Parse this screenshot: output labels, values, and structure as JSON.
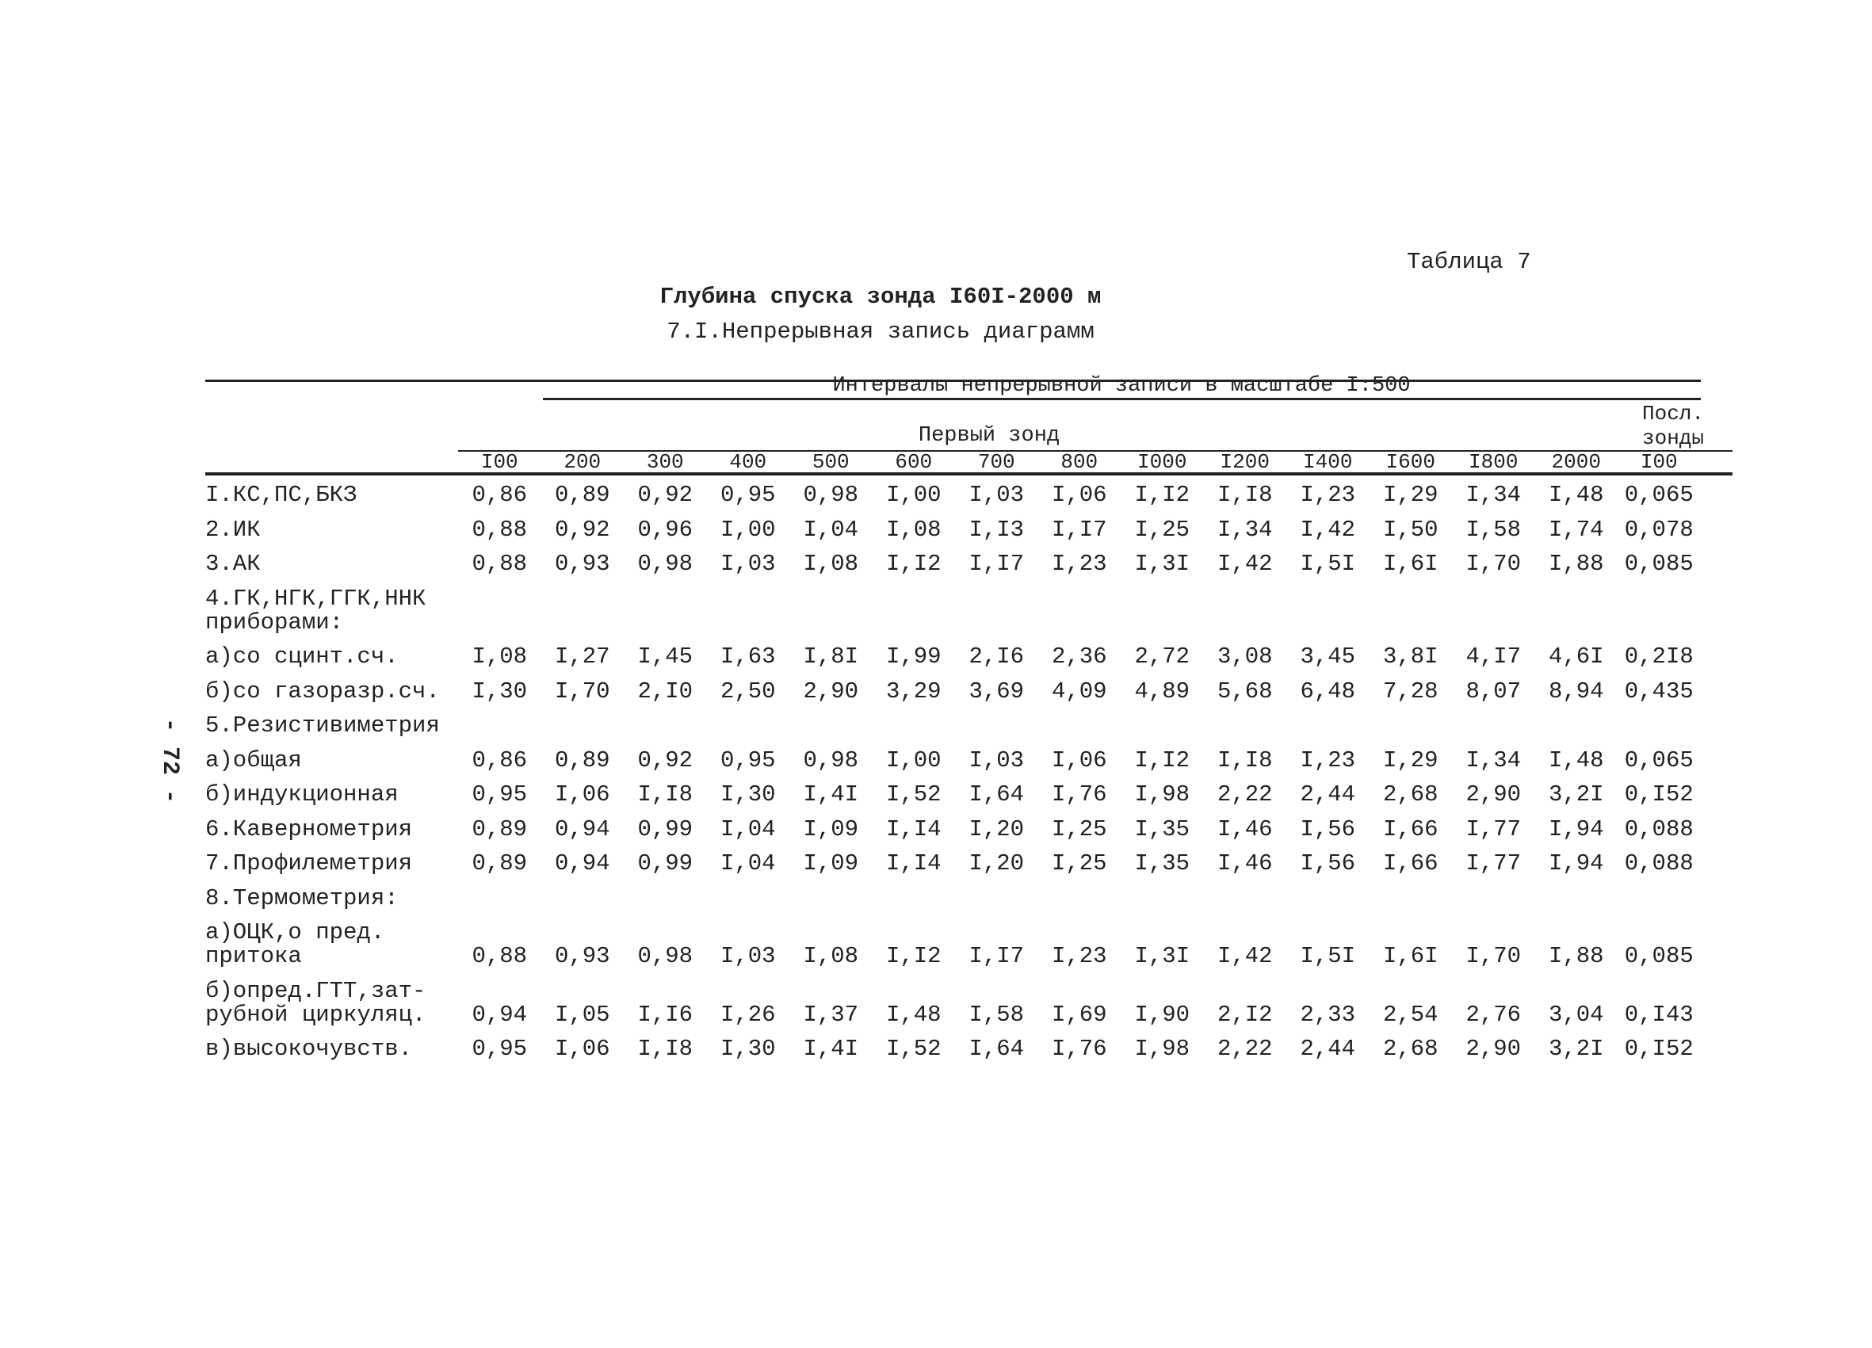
{
  "header": {
    "table_no": "Таблица 7",
    "title": "Глубина спуска зонда I60I-2000 м",
    "subtitle": "7.I.Непрерывная запись диаграмм",
    "page_no": "- 72 -"
  },
  "table": {
    "group_header": "Интервалы непрерывной записи в масштабе I:500",
    "first_header": "Первый зонд",
    "last_header": "Посл. зонды",
    "columns": [
      "I00",
      "200",
      "300",
      "400",
      "500",
      "600",
      "700",
      "800",
      "I000",
      "I200",
      "I400",
      "I600",
      "I800",
      "2000",
      "I00"
    ],
    "rows": [
      {
        "label": [
          "I.КС,ПС,БКЗ"
        ],
        "values": [
          "0,86",
          "0,89",
          "0,92",
          "0,95",
          "0,98",
          "I,00",
          "I,03",
          "I,06",
          "I,I2",
          "I,I8",
          "I,23",
          "I,29",
          "I,34",
          "I,48",
          "0,065"
        ]
      },
      {
        "label": [
          "2.ИК"
        ],
        "values": [
          "0,88",
          "0,92",
          "0,96",
          "I,00",
          "I,04",
          "I,08",
          "I,I3",
          "I,I7",
          "I,25",
          "I,34",
          "I,42",
          "I,50",
          "I,58",
          "I,74",
          "0,078"
        ]
      },
      {
        "label": [
          "3.АК"
        ],
        "values": [
          "0,88",
          "0,93",
          "0,98",
          "I,03",
          "I,08",
          "I,I2",
          "I,I7",
          "I,23",
          "I,3I",
          "I,42",
          "I,5I",
          "I,6I",
          "I,70",
          "I,88",
          "0,085"
        ]
      },
      {
        "label": [
          "4.ГК,НГК,ГГК,ННК",
          "приборами:"
        ]
      },
      {
        "label": [
          "а)со сцинт.сч."
        ],
        "values": [
          "I,08",
          "I,27",
          "I,45",
          "I,63",
          "I,8I",
          "I,99",
          "2,I6",
          "2,36",
          "2,72",
          "3,08",
          "3,45",
          "3,8I",
          "4,I7",
          "4,6I",
          "0,2I8"
        ]
      },
      {
        "label": [
          "б)со газоразр.сч."
        ],
        "values": [
          "I,30",
          "I,70",
          "2,I0",
          "2,50",
          "2,90",
          "3,29",
          "3,69",
          "4,09",
          "4,89",
          "5,68",
          "6,48",
          "7,28",
          "8,07",
          "8,94",
          "0,435"
        ]
      },
      {
        "label": [
          "5.Резистивиметрия"
        ]
      },
      {
        "label": [
          "а)общая"
        ],
        "values": [
          "0,86",
          "0,89",
          "0,92",
          "0,95",
          "0,98",
          "I,00",
          "I,03",
          "I,06",
          "I,I2",
          "I,I8",
          "I,23",
          "I,29",
          "I,34",
          "I,48",
          "0,065"
        ]
      },
      {
        "label": [
          "б)индукционная"
        ],
        "values": [
          "0,95",
          "I,06",
          "I,I8",
          "I,30",
          "I,4I",
          "I,52",
          "I,64",
          "I,76",
          "I,98",
          "2,22",
          "2,44",
          "2,68",
          "2,90",
          "3,2I",
          "0,I52"
        ]
      },
      {
        "label": [
          "6.Кавернометрия"
        ],
        "values": [
          "0,89",
          "0,94",
          "0,99",
          "I,04",
          "I,09",
          "I,I4",
          "I,20",
          "I,25",
          "I,35",
          "I,46",
          "I,56",
          "I,66",
          "I,77",
          "I,94",
          "0,088"
        ]
      },
      {
        "label": [
          "7.Профилеметрия"
        ],
        "values": [
          "0,89",
          "0,94",
          "0,99",
          "I,04",
          "I,09",
          "I,I4",
          "I,20",
          "I,25",
          "I,35",
          "I,46",
          "I,56",
          "I,66",
          "I,77",
          "I,94",
          "0,088"
        ]
      },
      {
        "label": [
          "8.Термометрия:"
        ]
      },
      {
        "label": [
          "а)ОЦК,о пред.",
          "притока"
        ],
        "values": [
          "0,88",
          "0,93",
          "0,98",
          "I,03",
          "I,08",
          "I,I2",
          "I,I7",
          "I,23",
          "I,3I",
          "I,42",
          "I,5I",
          "I,6I",
          "I,70",
          "I,88",
          "0,085"
        ]
      },
      {
        "label": [
          "б)опред.ГТТ,зат-",
          "рубной циркуляц."
        ],
        "values": [
          "0,94",
          "I,05",
          "I,I6",
          "I,26",
          "I,37",
          "I,48",
          "I,58",
          "I,69",
          "I,90",
          "2,I2",
          "2,33",
          "2,54",
          "2,76",
          "3,04",
          "0,I43"
        ]
      },
      {
        "label": [
          "в)высокочувств."
        ],
        "values": [
          "0,95",
          "I,06",
          "I,I8",
          "I,30",
          "I,4I",
          "I,52",
          "I,64",
          "I,76",
          "I,98",
          "2,22",
          "2,44",
          "2,68",
          "2,90",
          "3,2I",
          "0,I52"
        ]
      }
    ]
  }
}
